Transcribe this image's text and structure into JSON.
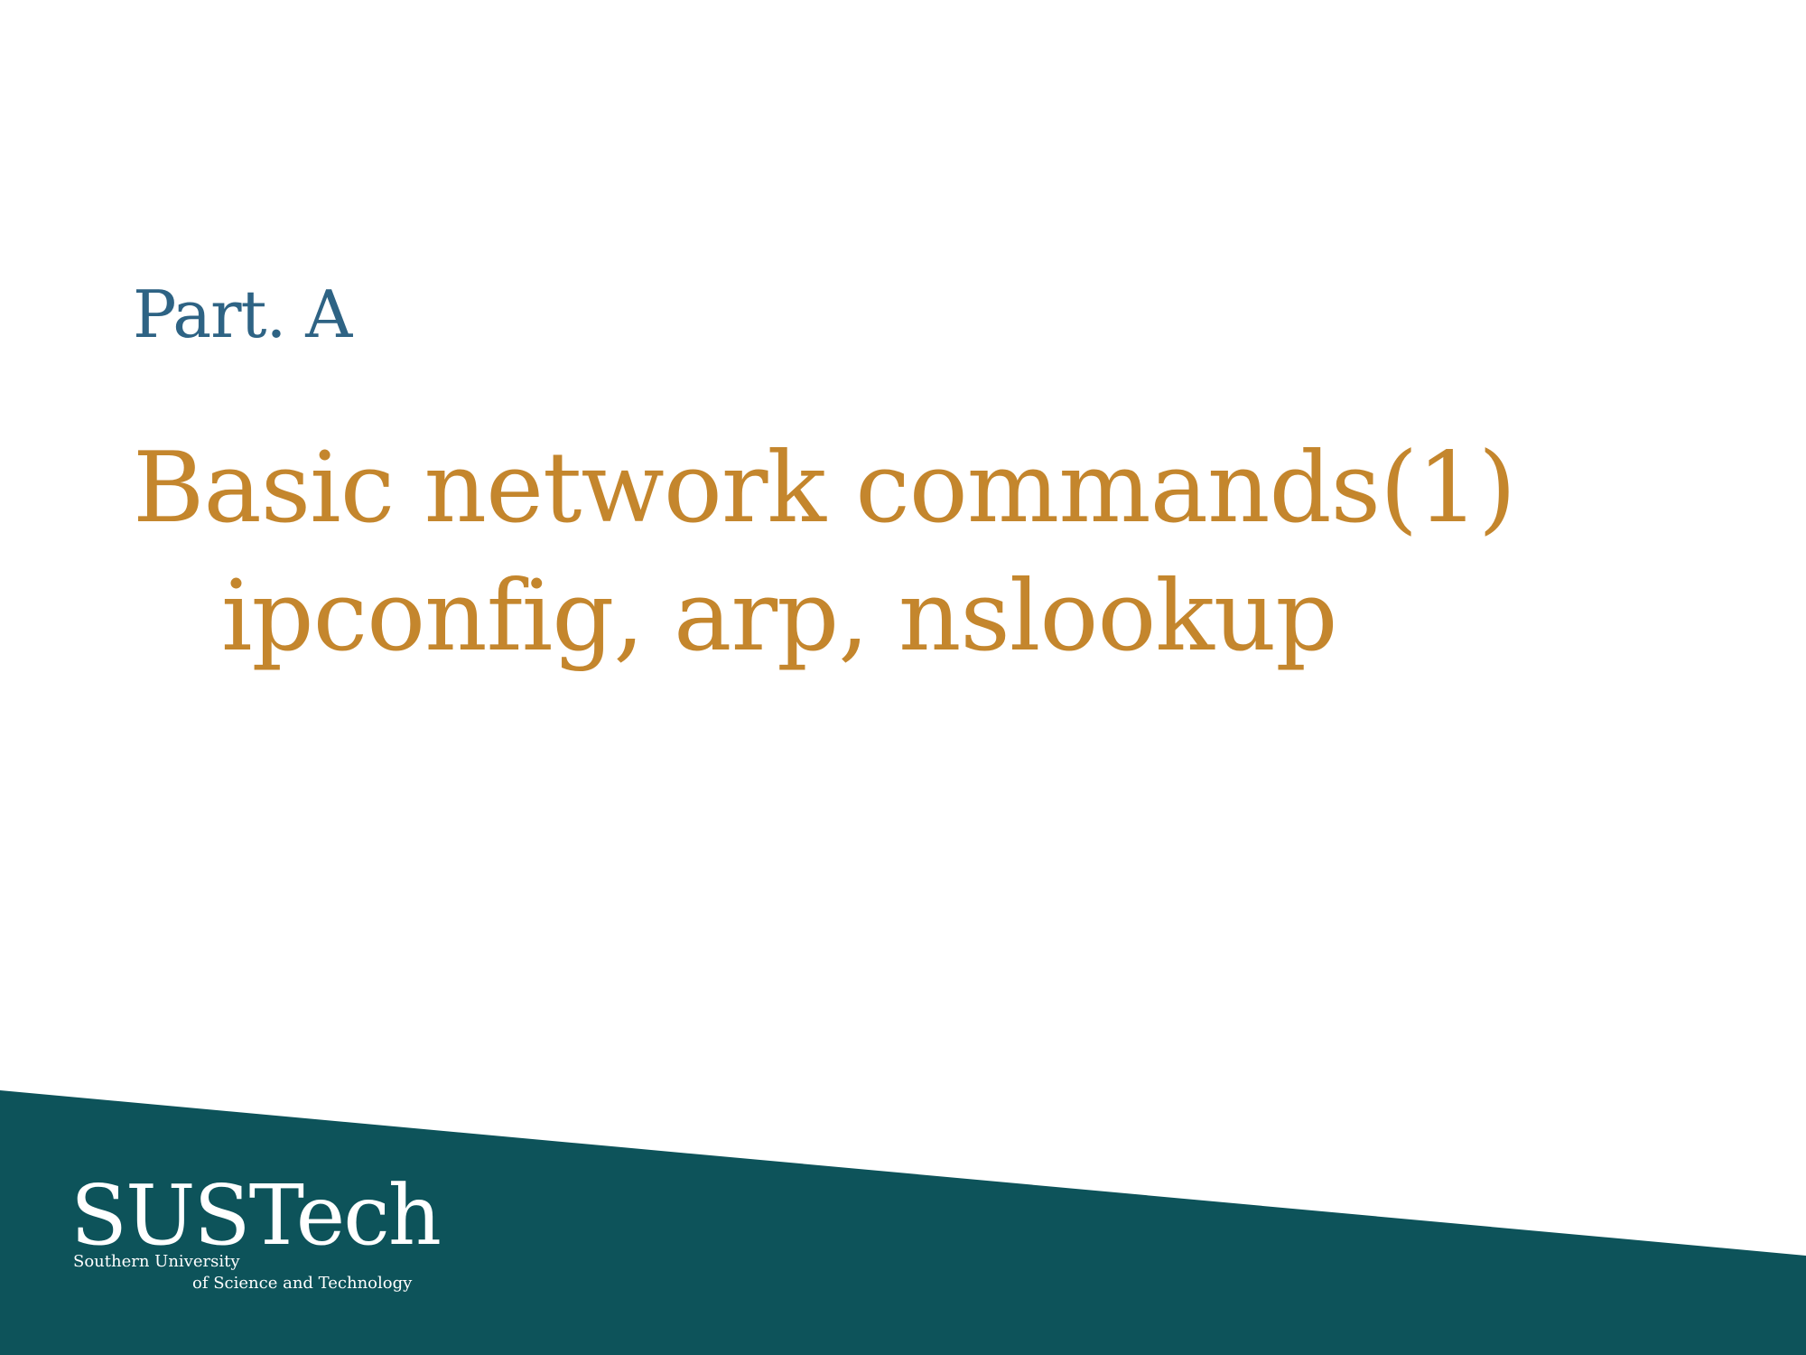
{
  "slide": {
    "part_label": "Part. A",
    "title_line_1": "Basic network commands(1)",
    "title_line_2": "ipconfig, arp, nslookup"
  },
  "footer": {
    "logo_text": "SUSTech",
    "logo_subtitle_1": "Southern University",
    "logo_subtitle_2": "of Science and Technology"
  },
  "colors": {
    "part_label": "#2e6384",
    "title": "#c4862d",
    "footer_band": "#0d535a",
    "logo": "#ffffff"
  }
}
